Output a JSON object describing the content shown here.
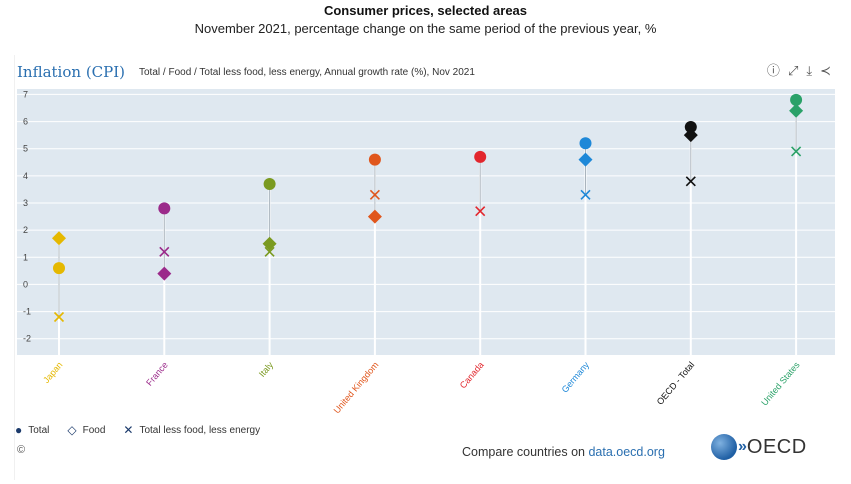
{
  "figure": {
    "title": "Consumer prices, selected areas",
    "subtitle": "November 2021, percentage change on the same period of the previous year, %"
  },
  "header": {
    "title": "Inflation (CPI)",
    "description": "Total / Food / Total less food, less energy, Annual growth rate (%), Nov 2021",
    "icons": [
      "info-icon",
      "expand-icon",
      "download-icon",
      "share-icon"
    ]
  },
  "legend": {
    "total_label": "Total",
    "food_label": "Food",
    "core_label": "Total less food, less energy"
  },
  "footer": {
    "copyright": "©",
    "compare_prefix": "Compare countries on ",
    "compare_link": "data.oecd.org",
    "logo_text": "OECD"
  },
  "chart_data": {
    "type": "scatter",
    "categories": [
      "Japan",
      "France",
      "Italy",
      "United Kingdom",
      "Canada",
      "Germany",
      "OECD - Total",
      "United States"
    ],
    "colors": [
      "#e5b800",
      "#9b2a8a",
      "#7a9a20",
      "#e0561c",
      "#e2262d",
      "#1e88d8",
      "#111111",
      "#2aa168"
    ],
    "y_ticks": [
      7,
      6,
      5,
      4,
      3,
      2,
      1,
      0,
      -1,
      -2
    ],
    "ylim": [
      -2.6,
      7.2
    ],
    "grid": true,
    "legend_position": "bottom-left",
    "series": [
      {
        "name": "Total",
        "marker": "circle",
        "values": [
          0.6,
          2.8,
          3.7,
          4.6,
          4.7,
          5.2,
          5.8,
          6.8
        ]
      },
      {
        "name": "Food",
        "marker": "diamond",
        "values": [
          1.7,
          0.4,
          1.5,
          2.5,
          null,
          4.6,
          5.5,
          6.4
        ]
      },
      {
        "name": "Total less food, less energy",
        "marker": "x",
        "values": [
          -1.2,
          1.2,
          1.2,
          3.3,
          2.7,
          3.3,
          3.8,
          4.9
        ]
      }
    ]
  }
}
